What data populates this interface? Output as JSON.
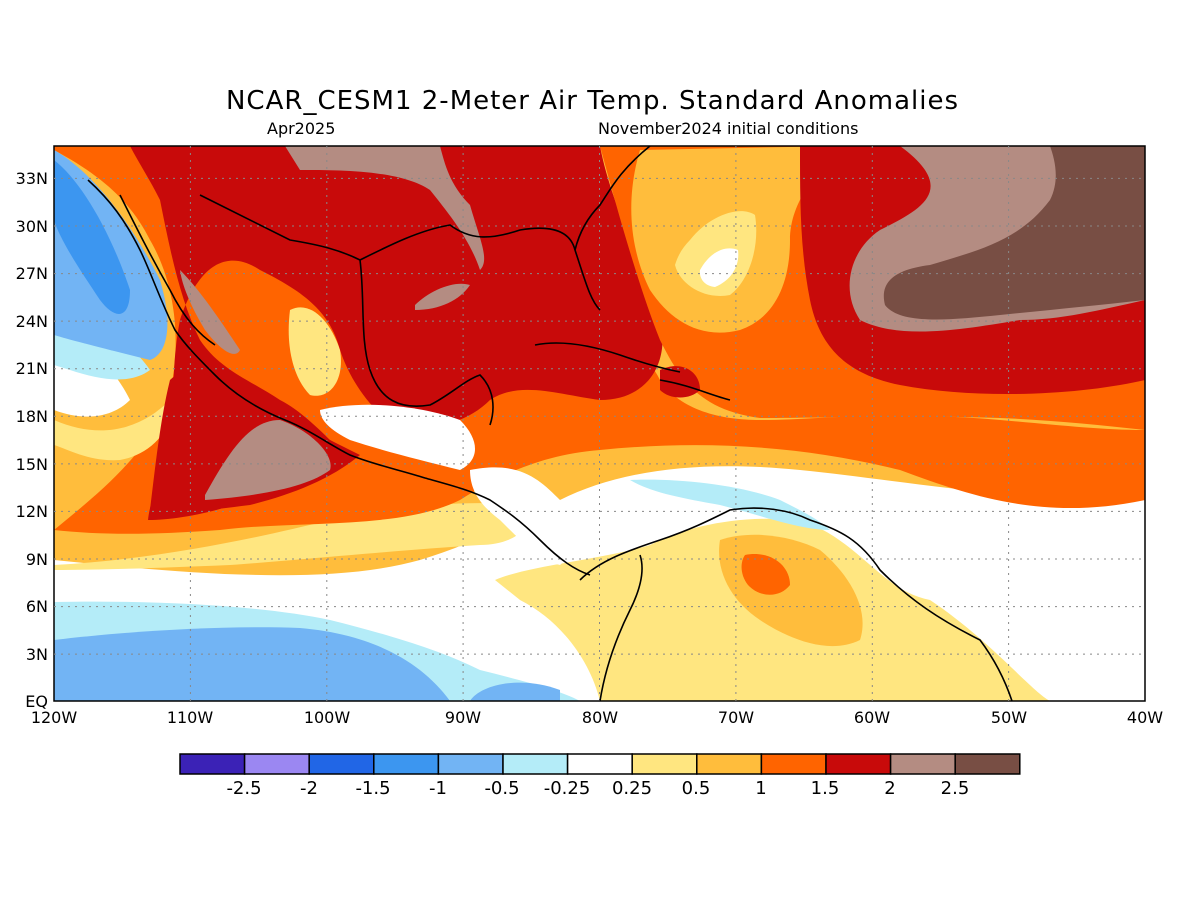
{
  "title": "NCAR_CESM1 2-Meter Air Temp. Standard Anomalies",
  "subtitle_left": "Apr2025",
  "subtitle_right": "November2024 initial conditions",
  "lat_labels": [
    "33N",
    "30N",
    "27N",
    "24N",
    "21N",
    "18N",
    "15N",
    "12N",
    "9N",
    "6N",
    "3N",
    "EQ"
  ],
  "lon_labels": [
    "120W",
    "110W",
    "100W",
    "90W",
    "80W",
    "70W",
    "60W",
    "50W",
    "40W"
  ],
  "colorbar": {
    "labels": [
      "-2.5",
      "-2",
      "-1.5",
      "-1",
      "-0.5",
      "-0.25",
      "0.25",
      "0.5",
      "1",
      "1.5",
      "2",
      "2.5"
    ],
    "colors": [
      "#3b22b6",
      "#9b87f2",
      "#2166e6",
      "#3c96f0",
      "#72b4f4",
      "#b4ecf8",
      "#ffffff",
      "#ffe680",
      "#ffbd3c",
      "#ff6400",
      "#c80a0a",
      "#b48c82",
      "#784e44"
    ]
  }
}
